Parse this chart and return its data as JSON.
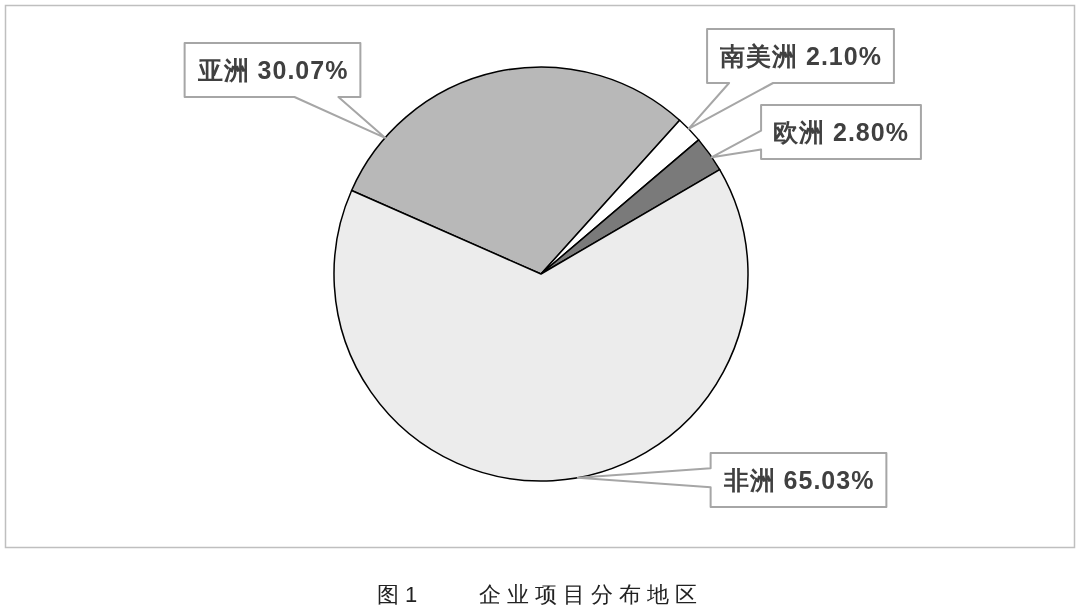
{
  "chart_data": {
    "type": "pie",
    "title": "图1　　企业项目分布地区",
    "categories": [
      "亚洲",
      "南美洲",
      "欧洲",
      "非洲"
    ],
    "values": [
      30.07,
      2.1,
      2.8,
      65.03
    ],
    "colors": [
      "#b8b8b8",
      "#ffffff",
      "#7a7a7a",
      "#ececec"
    ],
    "value_labels": [
      "30.07%",
      "2.10%",
      "2.80%",
      "65.03%"
    ]
  }
}
